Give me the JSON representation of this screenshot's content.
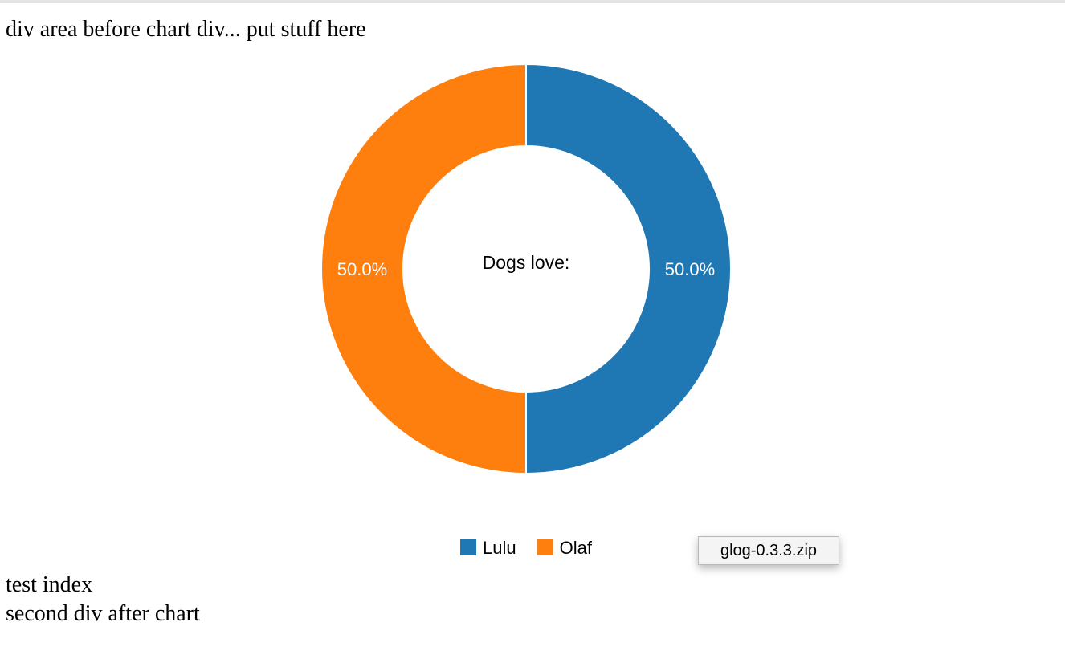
{
  "page": {
    "before_text": "div area before chart div... put stuff here",
    "after_text_1": "test index",
    "after_text_2": "second div after chart"
  },
  "tooltip": {
    "text": "glog-0.3.3.zip"
  },
  "chart_data": {
    "type": "pie",
    "variant": "donut",
    "center_title": "Dogs love:",
    "labels": [
      "Lulu",
      "Olaf"
    ],
    "values": [
      50,
      50
    ],
    "percent_labels": [
      "50.0%",
      "50.0%"
    ],
    "colors": [
      "#1f77b4",
      "#ff7f0e"
    ],
    "legend": {
      "placement": "bottom-center",
      "entries": [
        "Lulu",
        "Olaf"
      ]
    }
  }
}
